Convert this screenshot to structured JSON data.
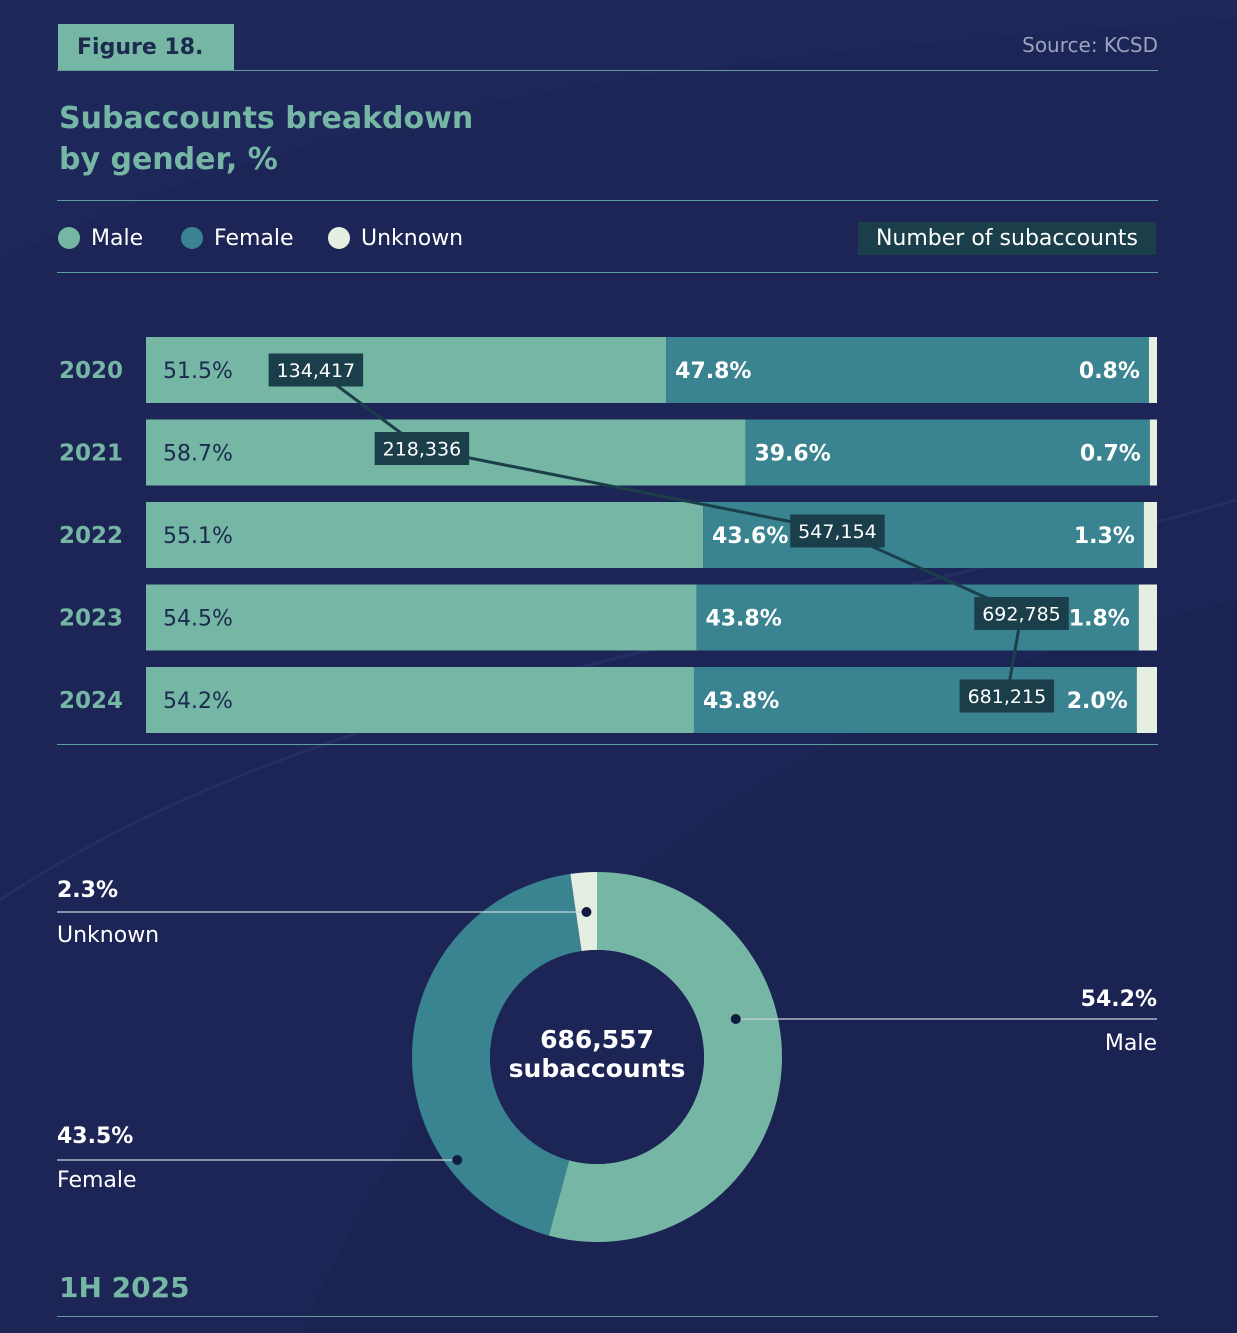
{
  "figure_label": "Figure 18.",
  "source": "Source: KCSD",
  "title_lines": [
    "Subaccounts breakdown",
    "by gender, %"
  ],
  "legend": [
    {
      "label": "Male",
      "color": "#75b7a4"
    },
    {
      "label": "Female",
      "color": "#3a8390"
    },
    {
      "label": "Unknown",
      "color": "#e4efe2"
    }
  ],
  "count_legend": "Number of subaccounts",
  "colors": {
    "male": "#75b7a4",
    "female": "#3a8390",
    "unknown": "#e4efe2",
    "label_box": "#1b3f4a",
    "accent_text": "#75b7a4",
    "dark_text": "#1b2a4d"
  },
  "chart_data": [
    {
      "type": "bar",
      "orientation": "horizontal-stacked-100",
      "categories": [
        "2020",
        "2021",
        "2022",
        "2023",
        "2024"
      ],
      "series": [
        {
          "name": "Male",
          "values": [
            51.5,
            58.7,
            55.1,
            54.5,
            54.2
          ],
          "labels": [
            "51.5%",
            "58.7%",
            "55.1%",
            "54.5%",
            "54.2%"
          ]
        },
        {
          "name": "Female",
          "values": [
            47.8,
            39.6,
            43.6,
            43.8,
            43.8
          ],
          "labels": [
            "47.8%",
            "39.6%",
            "43.6%",
            "43.8%",
            "43.8%"
          ]
        },
        {
          "name": "Unknown",
          "values": [
            0.8,
            0.7,
            1.3,
            1.8,
            2.0
          ],
          "labels": [
            "0.8%",
            "0.7%",
            "1.3%",
            "1.8%",
            "2.0%"
          ]
        }
      ],
      "overlay_line": {
        "name": "Number of subaccounts",
        "values": [
          134417,
          218336,
          547154,
          692785,
          681215
        ],
        "labels": [
          "134,417",
          "218,336",
          "547,154",
          "692,785",
          "681,215"
        ]
      }
    },
    {
      "type": "pie",
      "variant": "donut",
      "period": "1H 2025",
      "center_value": "686,557",
      "center_label": "subaccounts",
      "slices": [
        {
          "name": "Male",
          "value": 54.2,
          "label": "54.2%"
        },
        {
          "name": "Female",
          "value": 43.5,
          "label": "43.5%"
        },
        {
          "name": "Unknown",
          "value": 2.3,
          "label": "2.3%"
        }
      ]
    }
  ]
}
